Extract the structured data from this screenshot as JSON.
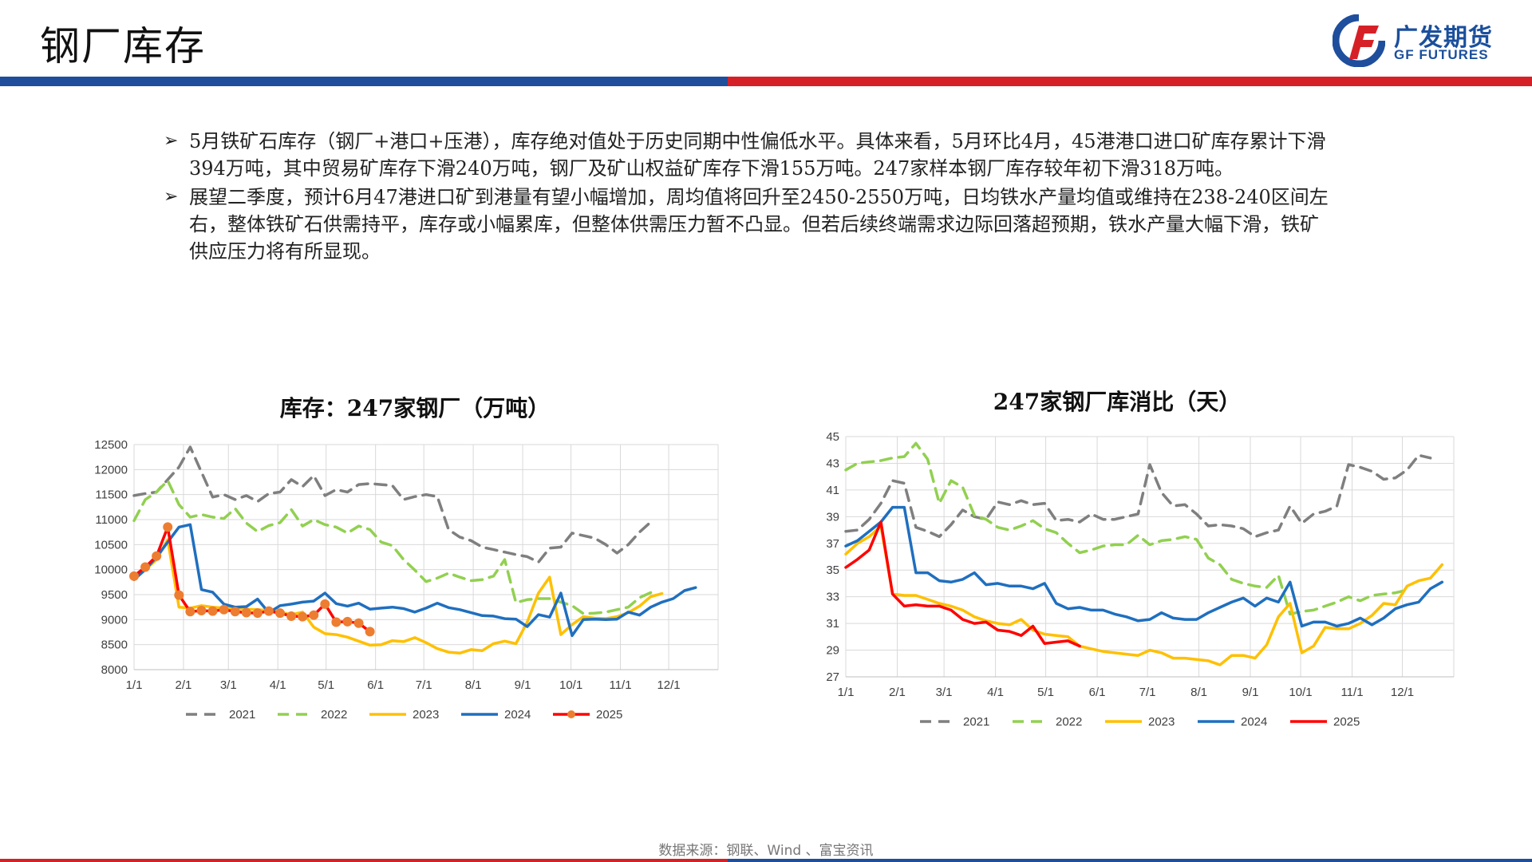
{
  "page": {
    "title": "钢厂库存",
    "source": "数据来源：钢联、Wind 、富宝资讯"
  },
  "logo": {
    "cn": "广发期货",
    "en": "GF FUTURES"
  },
  "colors": {
    "header_blue": "#1f4e9c",
    "header_red": "#d62027"
  },
  "bullets": [
    "5月铁矿石库存（钢厂+港口+压港），库存绝对值处于历史同期中性偏低水平。具体来看，5月环比4月，45港港口进口矿库存累计下滑394万吨，其中贸易矿库存下滑240万吨，钢厂及矿山权益矿库存下滑155万吨。247家样本钢厂库存较年初下滑318万吨。",
    "展望二季度，预计6月47港进口矿到港量有望小幅增加，周均值将回升至2450-2550万吨，日均铁水产量均值或维持在238-240区间左右，整体铁矿石供需持平，库存或小幅累库，但整体供需压力暂不凸显。但若后续终端需求边际回落超预期，铁水产量大幅下滑，铁矿供应压力将有所显现。"
  ],
  "chart_data": [
    {
      "type": "line",
      "title": "库存：247家钢厂（万吨）",
      "x_ticks": [
        "1/1",
        "2/1",
        "3/1",
        "4/1",
        "5/1",
        "6/1",
        "7/1",
        "8/1",
        "9/1",
        "10/1",
        "11/1",
        "12/1"
      ],
      "ylim": [
        8000,
        12500
      ],
      "y_ticks": [
        8000,
        8500,
        9000,
        9500,
        10000,
        10500,
        11000,
        11500,
        12000,
        12500
      ],
      "grid": true,
      "legend": "bottom",
      "series": [
        {
          "name": "2021",
          "color": "#7f7f7f",
          "dash": true,
          "markers": false,
          "values": [
            11480,
            11520,
            11550,
            11800,
            12050,
            12450,
            11950,
            11450,
            11500,
            11400,
            11480,
            11360,
            11520,
            11550,
            11800,
            11660,
            11880,
            11480,
            11600,
            11550,
            11700,
            11720,
            11700,
            11680,
            11400,
            11460,
            11500,
            11460,
            10800,
            10650,
            10580,
            10450,
            10400,
            10350,
            10300,
            10260,
            10150,
            10430,
            10450,
            10730,
            10680,
            10630,
            10500,
            10330,
            10500,
            10750,
            10950
          ]
        },
        {
          "name": "2022",
          "color": "#92d050",
          "dash": true,
          "markers": false,
          "values": [
            10980,
            11400,
            11550,
            11780,
            11300,
            11050,
            11100,
            11050,
            11020,
            11220,
            10930,
            10760,
            10880,
            10940,
            11200,
            10870,
            11000,
            10900,
            10850,
            10730,
            10870,
            10800,
            10550,
            10480,
            10200,
            9990,
            9760,
            9830,
            9930,
            9850,
            9780,
            9800,
            9870,
            10200,
            9340,
            9400,
            9420,
            9420,
            9350,
            9280,
            9120,
            9130,
            9150,
            9200,
            9250,
            9440,
            9540
          ]
        },
        {
          "name": "2023",
          "color": "#ffc000",
          "dash": false,
          "markers": false,
          "values": [
            9850,
            10000,
            10200,
            10600,
            9250,
            9230,
            9280,
            9250,
            9230,
            9220,
            9210,
            9200,
            9180,
            9150,
            9100,
            9150,
            8850,
            8720,
            8700,
            8650,
            8570,
            8490,
            8500,
            8580,
            8560,
            8640,
            8540,
            8420,
            8350,
            8330,
            8400,
            8380,
            8520,
            8570,
            8520,
            8950,
            9530,
            9850,
            8700,
            8900,
            9060,
            9030,
            9020,
            9060,
            9140,
            9270,
            9460,
            9520
          ]
        },
        {
          "name": "2024",
          "color": "#1f6fbf",
          "dash": false,
          "markers": false,
          "values": [
            9800,
            10000,
            10250,
            10550,
            10850,
            10900,
            9600,
            9550,
            9310,
            9250,
            9260,
            9410,
            9140,
            9280,
            9310,
            9350,
            9370,
            9530,
            9320,
            9270,
            9330,
            9210,
            9230,
            9250,
            9220,
            9150,
            9230,
            9330,
            9240,
            9200,
            9140,
            9080,
            9070,
            9020,
            9010,
            8860,
            9100,
            9050,
            9530,
            8680,
            9000,
            9010,
            9000,
            9010,
            9150,
            9090,
            9250,
            9350,
            9420,
            9580,
            9640
          ]
        },
        {
          "name": "2025",
          "color": "#ff0000",
          "dash": false,
          "markers": true,
          "marker_color": "#ed7d31",
          "values": [
            9870,
            10050,
            10270,
            10850,
            9490,
            9160,
            9180,
            9170,
            9200,
            9160,
            9140,
            9130,
            9170,
            9130,
            9070,
            9060,
            9090,
            9310,
            8950,
            8960,
            8930,
            8760
          ]
        }
      ]
    },
    {
      "type": "line",
      "title": "247家钢厂库消比（天）",
      "x_ticks": [
        "1/1",
        "2/1",
        "3/1",
        "4/1",
        "5/1",
        "6/1",
        "7/1",
        "8/1",
        "9/1",
        "10/1",
        "11/1",
        "12/1"
      ],
      "ylim": [
        27,
        45
      ],
      "y_ticks": [
        27,
        29,
        31,
        33,
        35,
        37,
        39,
        41,
        43,
        45
      ],
      "grid": true,
      "legend": "bottom",
      "series": [
        {
          "name": "2021",
          "color": "#7f7f7f",
          "dash": true,
          "markers": false,
          "values": [
            37.9,
            38.0,
            38.8,
            40.0,
            41.7,
            41.5,
            38.2,
            37.9,
            37.5,
            38.4,
            39.5,
            39.0,
            38.8,
            40.1,
            39.9,
            40.2,
            39.9,
            40.0,
            38.7,
            38.8,
            38.6,
            39.2,
            38.8,
            38.8,
            39.0,
            39.2,
            42.9,
            40.8,
            39.8,
            39.9,
            39.2,
            38.3,
            38.4,
            38.3,
            38.1,
            37.5,
            37.8,
            38.0,
            39.8,
            38.5,
            39.2,
            39.4,
            39.8,
            42.9,
            42.7,
            42.4,
            41.8,
            41.9,
            42.5,
            43.6,
            43.4
          ]
        },
        {
          "name": "2022",
          "color": "#92d050",
          "dash": true,
          "markers": false,
          "values": [
            42.5,
            43.0,
            43.1,
            43.2,
            43.4,
            43.5,
            44.5,
            43.3,
            40.0,
            41.7,
            41.2,
            39.1,
            38.8,
            38.2,
            38.0,
            38.3,
            38.7,
            38.1,
            37.8,
            37.0,
            36.3,
            36.5,
            36.8,
            36.9,
            36.9,
            37.6,
            36.9,
            37.2,
            37.3,
            37.5,
            37.3,
            35.9,
            35.4,
            34.3,
            34.0,
            33.8,
            33.7,
            34.6,
            31.7,
            31.9,
            32.0,
            32.3,
            32.6,
            33.0,
            32.7,
            33.1,
            33.2,
            33.3,
            33.5
          ]
        },
        {
          "name": "2023",
          "color": "#ffc000",
          "dash": false,
          "markers": false,
          "values": [
            36.2,
            37.0,
            37.5,
            38.3,
            33.2,
            33.1,
            33.1,
            32.8,
            32.5,
            32.3,
            32.0,
            31.5,
            31.2,
            31.0,
            30.9,
            31.3,
            30.5,
            30.2,
            30.1,
            30.0,
            29.3,
            29.1,
            28.9,
            28.8,
            28.7,
            28.6,
            29.0,
            28.8,
            28.4,
            28.4,
            28.3,
            28.2,
            27.9,
            28.6,
            28.6,
            28.4,
            29.4,
            31.5,
            32.5,
            28.8,
            29.3,
            30.7,
            30.6,
            30.6,
            31.0,
            31.6,
            32.5,
            32.4,
            33.8,
            34.2,
            34.4,
            35.4
          ]
        },
        {
          "name": "2024",
          "color": "#1f6fbf",
          "dash": false,
          "markers": false,
          "values": [
            36.8,
            37.2,
            37.9,
            38.6,
            39.7,
            39.7,
            34.8,
            34.8,
            34.2,
            34.1,
            34.3,
            34.8,
            33.9,
            34.0,
            33.8,
            33.8,
            33.6,
            34.0,
            32.5,
            32.1,
            32.2,
            32.0,
            32.0,
            31.7,
            31.5,
            31.2,
            31.3,
            31.8,
            31.4,
            31.3,
            31.3,
            31.8,
            32.2,
            32.6,
            32.9,
            32.3,
            32.9,
            32.6,
            34.1,
            30.8,
            31.1,
            31.1,
            30.8,
            31.0,
            31.4,
            30.9,
            31.4,
            32.1,
            32.4,
            32.6,
            33.6,
            34.1
          ]
        },
        {
          "name": "2025",
          "color": "#ff0000",
          "dash": false,
          "markers": false,
          "values": [
            35.2,
            35.8,
            36.5,
            38.6,
            33.2,
            32.3,
            32.4,
            32.3,
            32.3,
            32.0,
            31.3,
            31.0,
            31.1,
            30.5,
            30.4,
            30.1,
            30.8,
            29.5,
            29.6,
            29.7,
            29.3
          ]
        }
      ]
    }
  ]
}
